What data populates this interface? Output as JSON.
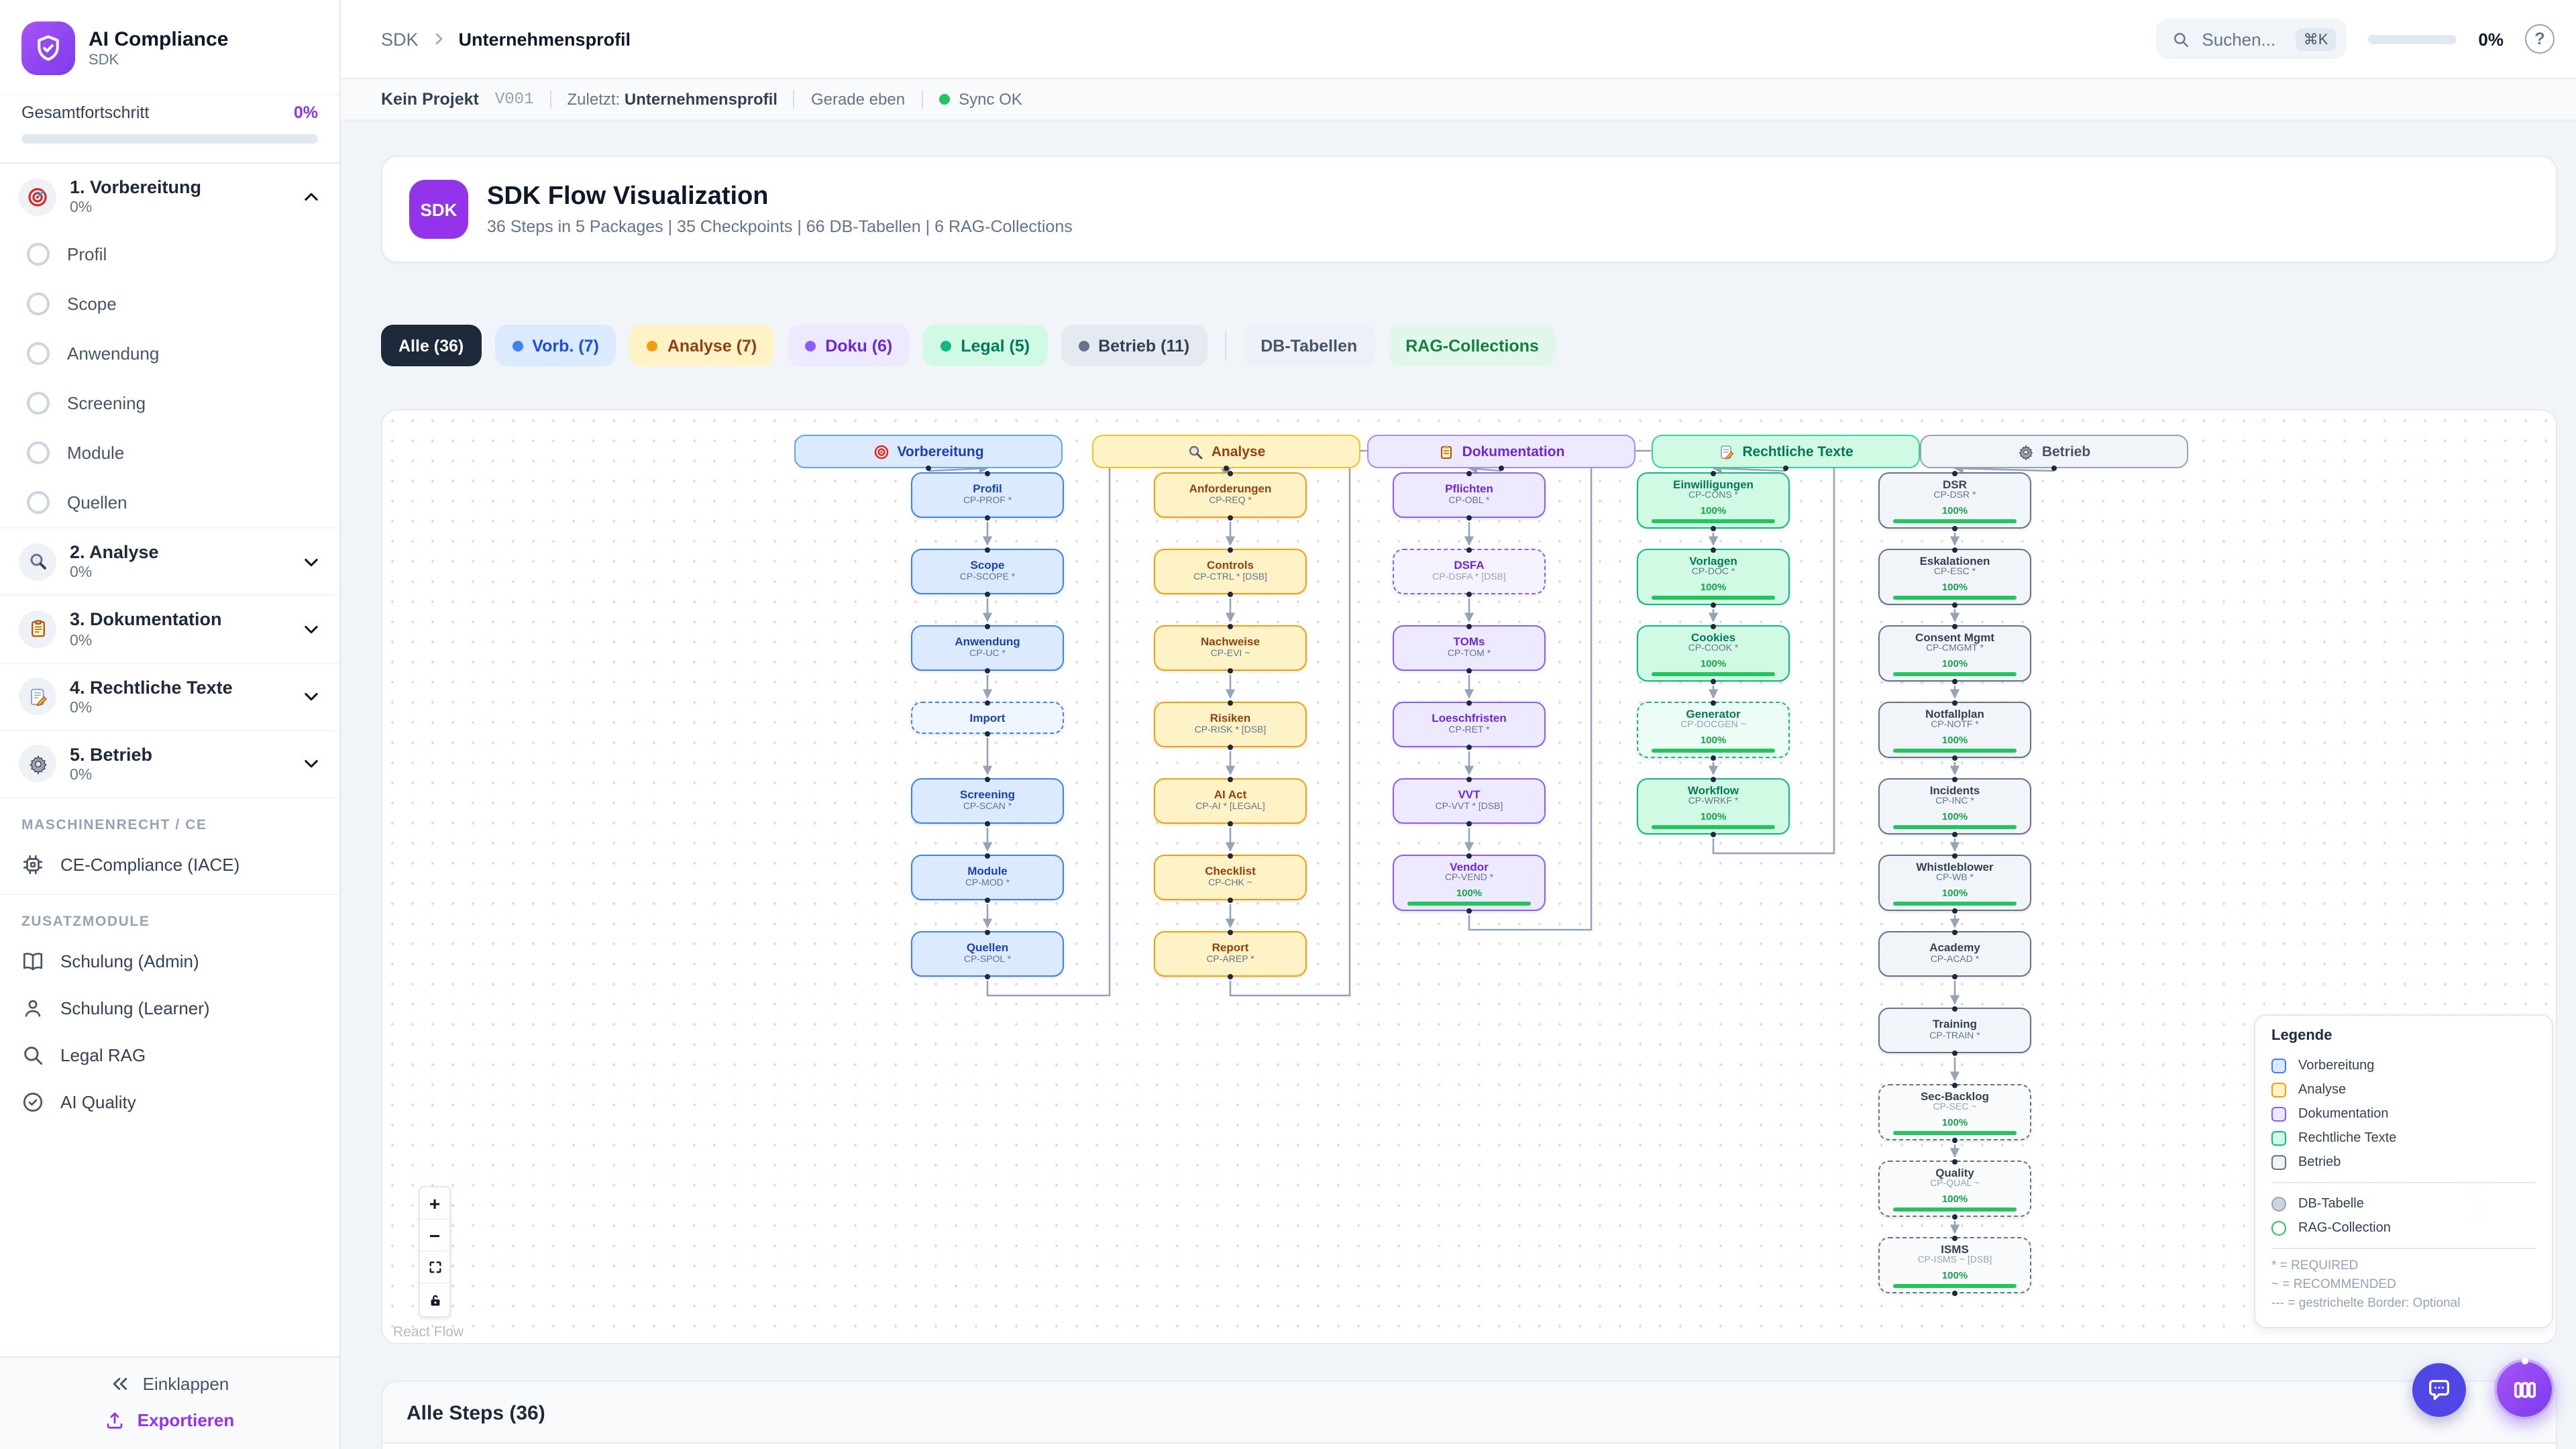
{
  "app": {
    "name": "AI Compliance",
    "subtitle": "SDK"
  },
  "sidebar": {
    "overall_label": "Gesamtfortschritt",
    "overall_value": "0%",
    "sections": [
      {
        "title": "1. Vorbereitung",
        "pct": "0%",
        "icon": "target-icon",
        "expanded": true,
        "items": [
          "Profil",
          "Scope",
          "Anwendung",
          "Screening",
          "Module",
          "Quellen"
        ]
      },
      {
        "title": "2. Analyse",
        "pct": "0%",
        "icon": "magnifier-icon",
        "expanded": false
      },
      {
        "title": "3. Dokumentation",
        "pct": "0%",
        "icon": "clipboard-icon",
        "expanded": false
      },
      {
        "title": "4. Rechtliche Texte",
        "pct": "0%",
        "icon": "memo-icon",
        "expanded": false
      },
      {
        "title": "5. Betrieb",
        "pct": "0%",
        "icon": "gear-icon",
        "expanded": false
      }
    ],
    "machine_group_label": "MASCHINENRECHT / CE",
    "machine_item": "CE-Compliance (IACE)",
    "extra_group_label": "ZUSATZMODULE",
    "extra_items": [
      "Schulung (Admin)",
      "Schulung (Learner)",
      "Legal RAG",
      "AI Quality"
    ],
    "collapse_label": "Einklappen",
    "export_label": "Exportieren"
  },
  "topbar": {
    "breadcrumb_root": "SDK",
    "breadcrumb_current": "Unternehmensprofil",
    "search_placeholder": "Suchen...",
    "search_kbd": "⌘K",
    "progress_value": "0%",
    "help_glyph": "?"
  },
  "statusbar": {
    "project": "Kein Projekt",
    "version": "V001",
    "last_label": "Zuletzt:",
    "last_value": "Unternehmensprofil",
    "time": "Gerade eben",
    "sync": "Sync OK"
  },
  "header_card": {
    "badge": "SDK",
    "title": "SDK Flow Visualization",
    "subtitle": "36 Steps in 5 Packages | 35 Checkpoints | 66 DB-Tabellen | 6 RAG-Collections"
  },
  "filters": {
    "chips": [
      {
        "key": "alle",
        "label": "Alle (36)",
        "bg": "#1e293b",
        "fg": "#ffffff",
        "active": true
      },
      {
        "key": "vorb",
        "label": "Vorb. (7)",
        "bg": "#dbeafe",
        "fg": "#1d4ed8",
        "dot": "#3b82f6"
      },
      {
        "key": "analyse",
        "label": "Analyse (7)",
        "bg": "#fef3c7",
        "fg": "#92400e",
        "dot": "#f59e0b"
      },
      {
        "key": "doku",
        "label": "Doku (6)",
        "bg": "#ede9fe",
        "fg": "#6d28d9",
        "dot": "#8b5cf6"
      },
      {
        "key": "legal",
        "label": "Legal (5)",
        "bg": "#d1fae5",
        "fg": "#047857",
        "dot": "#10b981"
      },
      {
        "key": "betrieb",
        "label": "Betrieb (11)",
        "bg": "#e5eaf1",
        "fg": "#334155",
        "dot": "#64748b",
        "divider_after": true
      },
      {
        "key": "db-tabellen",
        "label": "DB-Tabellen",
        "bg": "#edf1f7",
        "fg": "#475569"
      },
      {
        "key": "rag-collections",
        "label": "RAG-Collections",
        "bg": "#e2f7eb",
        "fg": "#15803d"
      }
    ]
  },
  "flow": {
    "packages": {
      "vorb": {
        "border": "#3b82f6",
        "bg": "#dbeafe",
        "bg_dashed": "#eff6ff",
        "title": "#1e40af",
        "header_bg": "#dbeafe",
        "header_border": "#60a5fa",
        "header_text": "#1e40af"
      },
      "analyse": {
        "border": "#f59e0b",
        "bg": "#fef3c7",
        "bg_dashed": "#fffbeb",
        "title": "#92400e",
        "header_bg": "#fef3c7",
        "header_border": "#fbbf24",
        "header_text": "#92400e"
      },
      "doku": {
        "border": "#8b5cf6",
        "bg": "#ede9fe",
        "bg_dashed": "#f5f3ff",
        "title": "#6d28d9",
        "header_bg": "#ede9fe",
        "header_border": "#a78bfa",
        "header_text": "#6d28d9"
      },
      "legal": {
        "border": "#10b981",
        "bg": "#d1fae5",
        "bg_dashed": "#ecfdf5",
        "title": "#047857",
        "header_bg": "#d1fae5",
        "header_border": "#34d399",
        "header_text": "#047857"
      },
      "betrieb": {
        "border": "#64748b",
        "bg": "#f1f5f9",
        "bg_dashed": "#f8fafc",
        "title": "#334155",
        "header_bg": "#f1f5f9",
        "header_border": "#94a3b8",
        "header_text": "#475569"
      }
    },
    "columns": [
      {
        "pkg": "vorb",
        "header": "Vorbereitung",
        "icon": "target-icon",
        "nodes": [
          {
            "title": "Profil",
            "code": "CP-PROF *"
          },
          {
            "title": "Scope",
            "code": "CP-SCOPE *"
          },
          {
            "title": "Anwendung",
            "code": "CP-UC *"
          },
          {
            "title": "Import",
            "code": "",
            "dashed": true
          },
          {
            "title": "Screening",
            "code": "CP-SCAN *"
          },
          {
            "title": "Module",
            "code": "CP-MOD *"
          },
          {
            "title": "Quellen",
            "code": "CP-SPOL *"
          }
        ]
      },
      {
        "pkg": "analyse",
        "header": "Analyse",
        "icon": "magnifier-icon",
        "nodes": [
          {
            "title": "Anforderungen",
            "code": "CP-REQ *"
          },
          {
            "title": "Controls",
            "code": "CP-CTRL * [DSB]"
          },
          {
            "title": "Nachweise",
            "code": "CP-EVI ~"
          },
          {
            "title": "Risiken",
            "code": "CP-RISK * [DSB]"
          },
          {
            "title": "AI Act",
            "code": "CP-AI * [LEGAL]"
          },
          {
            "title": "Checklist",
            "code": "CP-CHK ~"
          },
          {
            "title": "Report",
            "code": "CP-AREP *"
          }
        ]
      },
      {
        "pkg": "doku",
        "header": "Dokumentation",
        "icon": "clipboard-icon",
        "nodes": [
          {
            "title": "Pflichten",
            "code": "CP-OBL *"
          },
          {
            "title": "DSFA",
            "code": "CP-DSFA * [DSB]",
            "dashed": true
          },
          {
            "title": "TOMs",
            "code": "CP-TOM *"
          },
          {
            "title": "Loeschfristen",
            "code": "CP-RET *"
          },
          {
            "title": "VVT",
            "code": "CP-VVT * [DSB]"
          },
          {
            "title": "Vendor",
            "code": "CP-VEND *",
            "progress": "100%"
          }
        ]
      },
      {
        "pkg": "legal",
        "header": "Rechtliche Texte",
        "icon": "memo-icon",
        "nodes": [
          {
            "title": "Einwilligungen",
            "code": "CP-CONS *",
            "progress": "100%"
          },
          {
            "title": "Vorlagen",
            "code": "CP-DOC *",
            "progress": "100%"
          },
          {
            "title": "Cookies",
            "code": "CP-COOK *",
            "progress": "100%"
          },
          {
            "title": "Generator",
            "code": "CP-DOCGEN ~",
            "progress": "100%",
            "dashed": true
          },
          {
            "title": "Workflow",
            "code": "CP-WRKF *",
            "progress": "100%"
          }
        ]
      },
      {
        "pkg": "betrieb",
        "header": "Betrieb",
        "icon": "gear-icon",
        "nodes": [
          {
            "title": "DSR",
            "code": "CP-DSR *",
            "progress": "100%"
          },
          {
            "title": "Eskalationen",
            "code": "CP-ESC *",
            "progress": "100%"
          },
          {
            "title": "Consent Mgmt",
            "code": "CP-CMGMT *",
            "progress": "100%"
          },
          {
            "title": "Notfallplan",
            "code": "CP-NOTF *",
            "progress": "100%"
          },
          {
            "title": "Incidents",
            "code": "CP-INC *",
            "progress": "100%"
          },
          {
            "title": "Whistleblower",
            "code": "CP-WB *",
            "progress": "100%"
          },
          {
            "title": "Academy",
            "code": "CP-ACAD *"
          },
          {
            "title": "Training",
            "code": "CP-TRAIN *"
          },
          {
            "title": "Sec-Backlog",
            "code": "CP-SEC ~",
            "progress": "100%",
            "dashed": true
          },
          {
            "title": "Quality",
            "code": "CP-QUAL ~",
            "progress": "100%",
            "dashed": true
          },
          {
            "title": "ISMS",
            "code": "CP-ISMS ~ [DSB]",
            "progress": "100%",
            "dashed": true
          }
        ]
      }
    ]
  },
  "legend": {
    "title": "Legende",
    "packages": [
      {
        "label": "Vorbereitung",
        "pkg": "vorb"
      },
      {
        "label": "Analyse",
        "pkg": "analyse"
      },
      {
        "label": "Dokumentation",
        "pkg": "doku"
      },
      {
        "label": "Rechtliche Texte",
        "pkg": "legal"
      },
      {
        "label": "Betrieb",
        "pkg": "betrieb"
      }
    ],
    "markers": [
      {
        "label": "DB-Tabelle",
        "type": "circle-filled",
        "color": "#94a3b8",
        "fill": "#cbd5e1"
      },
      {
        "label": "RAG-Collection",
        "type": "circle-outline",
        "color": "#22c55e",
        "fill": "#ffffff"
      }
    ],
    "notes": [
      "* = REQUIRED",
      "~ = RECOMMENDED",
      "--- = gestrichelte Border: Optional"
    ]
  },
  "flow_controls": {
    "zoom_in": "+",
    "zoom_out": "−",
    "attribution": "React Flow"
  },
  "steps_card": {
    "title": "Alle Steps (36)"
  }
}
